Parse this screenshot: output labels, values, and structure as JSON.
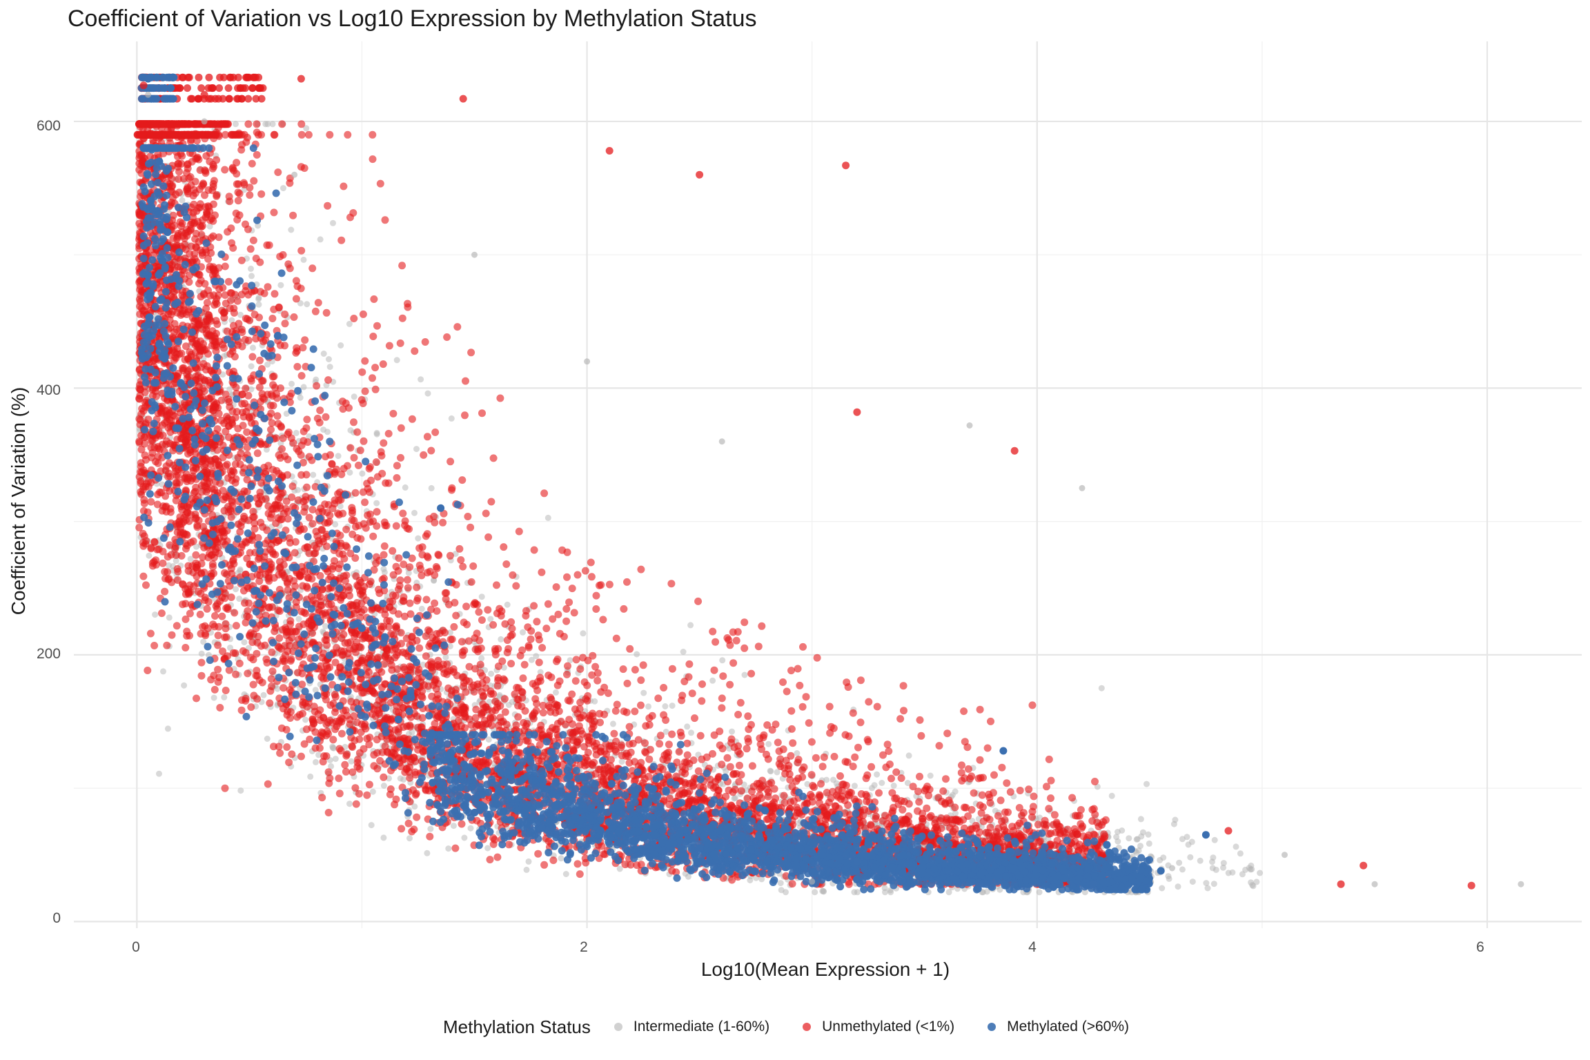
{
  "chart_data": {
    "type": "scatter",
    "title": "Coefficient of Variation vs Log10 Expression by Methylation Status",
    "xlabel": "Log10(Mean Expression + 1)",
    "ylabel": "Coefficient of Variation (%)",
    "xlim": [
      -0.28,
      6.42
    ],
    "ylim": [
      -5,
      660
    ],
    "x_ticks": [
      "0",
      "2",
      "4",
      "6"
    ],
    "y_ticks": [
      "0",
      "200",
      "400",
      "600"
    ],
    "grid": true,
    "legend_position": "bottom",
    "legend_title": "Methylation Status",
    "series": [
      {
        "name": "Intermediate (1-60%)",
        "color": "#b3b3b3",
        "opacity": 0.5,
        "sample_points": [
          [
            0.05,
            620
          ],
          [
            0.3,
            600
          ],
          [
            0.7,
            560
          ],
          [
            1.5,
            500
          ],
          [
            2.0,
            420
          ],
          [
            2.6,
            360
          ],
          [
            3.7,
            372
          ],
          [
            4.2,
            325
          ],
          [
            5.1,
            50
          ],
          [
            5.5,
            28
          ],
          [
            6.15,
            28
          ],
          [
            3.0,
            30
          ],
          [
            4.6,
            40
          ]
        ]
      },
      {
        "name": "Unmethylated (<1%)",
        "color": "#e41a1c",
        "opacity": 0.6,
        "sample_points": [
          [
            0.03,
            627
          ],
          [
            0.3,
            620
          ],
          [
            0.73,
            632
          ],
          [
            1.45,
            617
          ],
          [
            2.1,
            578
          ],
          [
            3.15,
            567
          ],
          [
            3.9,
            353
          ],
          [
            4.85,
            68
          ],
          [
            5.35,
            28
          ],
          [
            5.45,
            42
          ],
          [
            5.93,
            27
          ],
          [
            3.2,
            382
          ],
          [
            2.5,
            560
          ]
        ]
      },
      {
        "name": "Methylated (>60%)",
        "color": "#3b6fb0",
        "opacity": 0.9,
        "sample_points": [
          [
            0.05,
            632
          ],
          [
            0.1,
            570
          ],
          [
            0.35,
            480
          ],
          [
            1.0,
            220
          ],
          [
            1.8,
            70
          ],
          [
            2.5,
            55
          ],
          [
            3.2,
            45
          ],
          [
            3.85,
            128
          ],
          [
            4.25,
            28
          ],
          [
            4.75,
            65
          ],
          [
            4.55,
            38
          ],
          [
            1.35,
            310
          ]
        ]
      }
    ]
  }
}
